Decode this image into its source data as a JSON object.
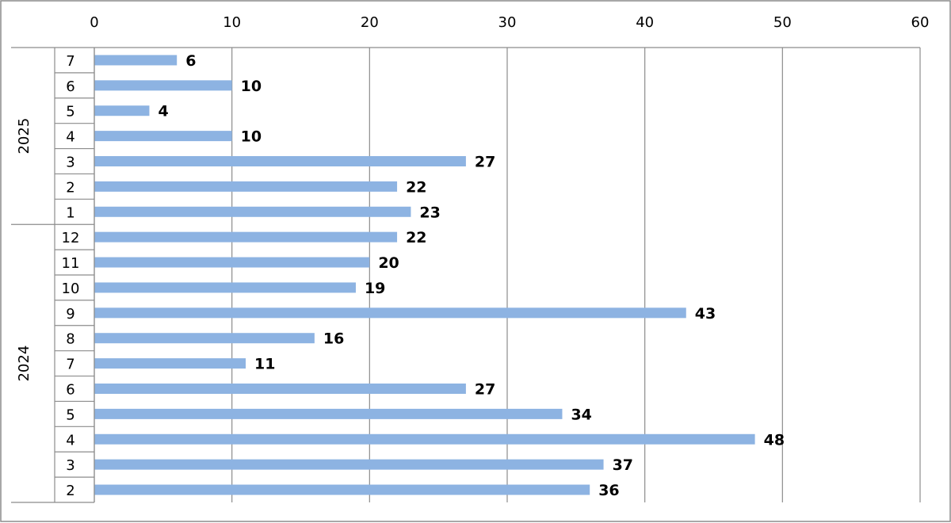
{
  "chart_data": {
    "type": "bar",
    "orientation": "horizontal",
    "title": "",
    "xlabel": "",
    "ylabel": "",
    "xlim": [
      0,
      60
    ],
    "xticks": [
      0,
      10,
      20,
      30,
      40,
      50,
      60
    ],
    "x_axis_position": "top",
    "grid": true,
    "legend": "none",
    "bar_color": "#8db3e2",
    "groups": [
      {
        "name": "2025",
        "categories": [
          "7",
          "6",
          "5",
          "4",
          "3",
          "2",
          "1"
        ],
        "values": [
          6,
          10,
          4,
          10,
          27,
          22,
          23
        ]
      },
      {
        "name": "2024",
        "categories": [
          "12",
          "11",
          "10",
          "9",
          "8",
          "7",
          "6",
          "5",
          "4",
          "3",
          "2"
        ],
        "values": [
          22,
          20,
          19,
          43,
          16,
          11,
          27,
          34,
          48,
          37,
          36
        ]
      }
    ]
  }
}
